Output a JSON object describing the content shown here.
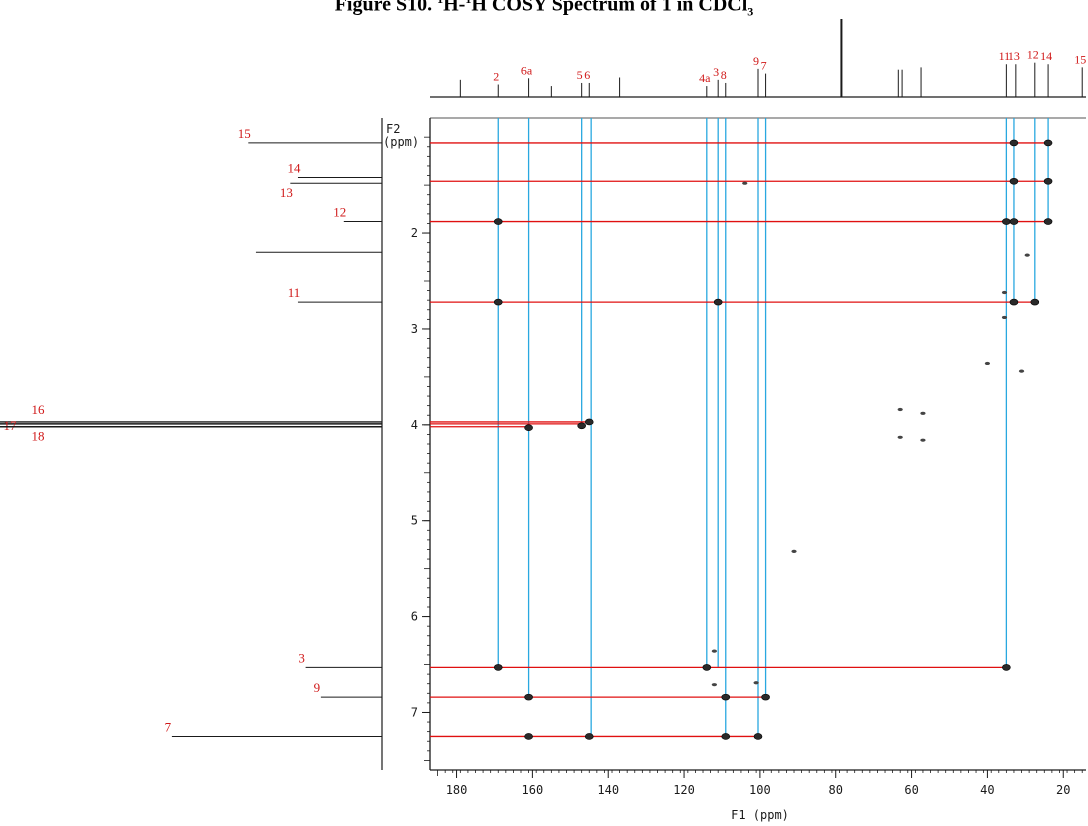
{
  "caption": {
    "prefix": "Figure S10.",
    "nucleus_a_mass": "1",
    "nucleus_a": "H-",
    "nucleus_b_mass": "1",
    "nucleus_b": "H COSY Spectrum of ",
    "compound": "1",
    "solvent_prefix": " in CDCl",
    "solvent_sub": "3"
  },
  "chart_data": {
    "type": "scatter",
    "title": "",
    "xlabel": "F1 (ppm)",
    "ylabel": "F2\n(ppm)",
    "xlim": [
      187,
      14
    ],
    "ylim": [
      0.8,
      7.6
    ],
    "x_ticks": [
      180,
      160,
      140,
      120,
      100,
      80,
      60,
      40,
      20
    ],
    "y_ticks": [
      2,
      3,
      4,
      5,
      6,
      7
    ],
    "grid": false,
    "top_projection": {
      "peaks": [
        {
          "x": 179,
          "h": 0.22,
          "label": ""
        },
        {
          "x": 169,
          "h": 0.16,
          "label": "2"
        },
        {
          "x": 161,
          "h": 0.24,
          "label": "6a"
        },
        {
          "x": 155,
          "h": 0.14,
          "label": ""
        },
        {
          "x": 147,
          "h": 0.18,
          "label": "5"
        },
        {
          "x": 145,
          "h": 0.18,
          "label": "6"
        },
        {
          "x": 137,
          "h": 0.25,
          "label": ""
        },
        {
          "x": 114,
          "h": 0.14,
          "label": "4a"
        },
        {
          "x": 111,
          "h": 0.22,
          "label": "3"
        },
        {
          "x": 109,
          "h": 0.18,
          "label": "8"
        },
        {
          "x": 100.5,
          "h": 0.36,
          "label": "9"
        },
        {
          "x": 98.5,
          "h": 0.3,
          "label": "7"
        },
        {
          "x": 78.5,
          "h": 1.0,
          "label": ""
        },
        {
          "x": 63.5,
          "h": 0.35,
          "label": ""
        },
        {
          "x": 62.5,
          "h": 0.35,
          "label": ""
        },
        {
          "x": 57.5,
          "h": 0.38,
          "label": ""
        },
        {
          "x": 35,
          "h": 0.42,
          "label": "11"
        },
        {
          "x": 32.5,
          "h": 0.42,
          "label": "13"
        },
        {
          "x": 27.5,
          "h": 0.44,
          "label": "12"
        },
        {
          "x": 24,
          "h": 0.42,
          "label": "14"
        },
        {
          "x": 15,
          "h": 0.38,
          "label": "15"
        }
      ]
    },
    "left_projection": {
      "peaks": [
        {
          "y": 1.06,
          "h": 0.35,
          "label": "15"
        },
        {
          "y": 1.42,
          "h": 0.22,
          "label": "14"
        },
        {
          "y": 1.48,
          "h": 0.24,
          "label": "13"
        },
        {
          "y": 1.88,
          "h": 0.1,
          "label": "12"
        },
        {
          "y": 2.2,
          "h": 0.33,
          "label": ""
        },
        {
          "y": 2.72,
          "h": 0.22,
          "label": "11"
        },
        {
          "y": 3.97,
          "h": 1.0,
          "label": "16"
        },
        {
          "y": 3.99,
          "h": 1.0,
          "label": "17"
        },
        {
          "y": 4.02,
          "h": 1.0,
          "label": "18"
        },
        {
          "y": 6.53,
          "h": 0.2,
          "label": "3"
        },
        {
          "y": 6.84,
          "h": 0.16,
          "label": "9"
        },
        {
          "y": 7.25,
          "h": 0.55,
          "label": "7"
        }
      ]
    },
    "correlations": [
      {
        "x": 33,
        "y": 1.06
      },
      {
        "x": 24,
        "y": 1.06
      },
      {
        "x": 33,
        "y": 1.46
      },
      {
        "x": 24,
        "y": 1.46
      },
      {
        "x": 169,
        "y": 1.88
      },
      {
        "x": 35,
        "y": 1.88
      },
      {
        "x": 33,
        "y": 1.88
      },
      {
        "x": 24,
        "y": 1.88
      },
      {
        "x": 169,
        "y": 2.72
      },
      {
        "x": 111,
        "y": 2.72
      },
      {
        "x": 33,
        "y": 2.72
      },
      {
        "x": 27.5,
        "y": 2.72
      },
      {
        "x": 161,
        "y": 4.03
      },
      {
        "x": 147,
        "y": 4.01
      },
      {
        "x": 145,
        "y": 3.97
      },
      {
        "x": 169,
        "y": 6.53
      },
      {
        "x": 114,
        "y": 6.53
      },
      {
        "x": 35,
        "y": 6.53
      },
      {
        "x": 161,
        "y": 6.84
      },
      {
        "x": 109,
        "y": 6.84
      },
      {
        "x": 98.5,
        "y": 6.84
      },
      {
        "x": 109,
        "y": 7.25
      },
      {
        "x": 100.5,
        "y": 7.25
      },
      {
        "x": 145,
        "y": 7.25
      },
      {
        "x": 161,
        "y": 7.25
      }
    ],
    "artifacts": [
      {
        "x": 63,
        "y": 3.84
      },
      {
        "x": 57,
        "y": 3.88
      },
      {
        "x": 63,
        "y": 4.13
      },
      {
        "x": 57,
        "y": 4.16
      },
      {
        "x": 29.5,
        "y": 2.23
      },
      {
        "x": 40,
        "y": 3.36
      },
      {
        "x": 31,
        "y": 3.44
      },
      {
        "x": 91,
        "y": 5.32
      },
      {
        "x": 112,
        "y": 6.36
      },
      {
        "x": 112,
        "y": 6.71
      },
      {
        "x": 101,
        "y": 6.69
      },
      {
        "x": 35.5,
        "y": 2.62
      },
      {
        "x": 35.5,
        "y": 2.88
      },
      {
        "x": 104,
        "y": 1.48
      }
    ],
    "blue_lines": [
      {
        "x": 169,
        "y_end": 6.53
      },
      {
        "x": 161,
        "y_end": 6.84
      },
      {
        "x": 147,
        "y_end": 4.0
      },
      {
        "x": 144.5,
        "y_end": 7.25
      },
      {
        "x": 114,
        "y_end": 6.53
      },
      {
        "x": 111,
        "y_end": 6.53
      },
      {
        "x": 109,
        "y_end": 7.25
      },
      {
        "x": 100.5,
        "y_end": 7.25
      },
      {
        "x": 98.5,
        "y_end": 6.84
      },
      {
        "x": 35,
        "y_end": 6.53
      },
      {
        "x": 33,
        "y_end": 2.72
      },
      {
        "x": 27.5,
        "y_end": 2.72
      },
      {
        "x": 24,
        "y_end": 1.88
      }
    ],
    "red_lines": [
      {
        "y": 1.06,
        "x_end": 24
      },
      {
        "y": 1.46,
        "x_end": 24
      },
      {
        "y": 1.88,
        "x_end": 24
      },
      {
        "y": 2.72,
        "x_end": 27.5
      },
      {
        "y": 3.97,
        "x_end": 145
      },
      {
        "y": 3.99,
        "x_end": 147
      },
      {
        "y": 4.02,
        "x_end": 161
      },
      {
        "y": 6.53,
        "x_end": 35
      },
      {
        "y": 6.84,
        "x_end": 98.5
      },
      {
        "y": 7.25,
        "x_end": 100.5
      }
    ],
    "colors": {
      "blue_line": "#29a8e0",
      "red_line": "#e01010",
      "label": "#d01818",
      "ink": "#1a1a1a"
    }
  }
}
